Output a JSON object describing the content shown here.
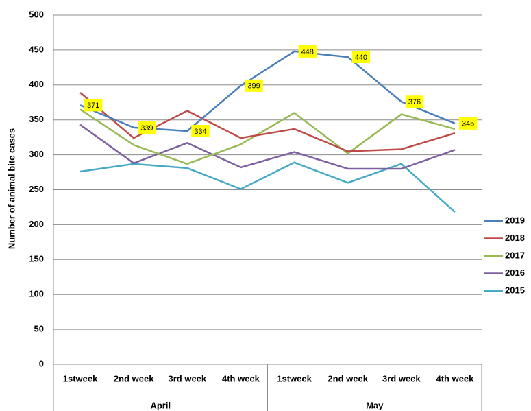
{
  "chart_data": {
    "type": "line",
    "y_axis_label": "Number of animal bite cases",
    "categories": [
      "1stweek",
      "2nd week",
      "3rd week",
      "4th week",
      "1stweek",
      "2nd week",
      "3rd week",
      "4th week"
    ],
    "category_groups": [
      {
        "label": "April",
        "count": 4
      },
      {
        "label": "May",
        "count": 4
      }
    ],
    "series": [
      {
        "name": "2019",
        "color": "#4a7ebb",
        "values": [
          371,
          339,
          334,
          399,
          448,
          440,
          376,
          345
        ],
        "data_labels": true
      },
      {
        "name": "2018",
        "color": "#be4b48",
        "values": [
          389,
          324,
          363,
          324,
          337,
          305,
          308,
          331
        ]
      },
      {
        "name": "2017",
        "color": "#98b954",
        "values": [
          365,
          314,
          287,
          315,
          360,
          302,
          358,
          337
        ]
      },
      {
        "name": "2016",
        "color": "#7d60a0",
        "values": [
          343,
          288,
          317,
          282,
          304,
          280,
          280,
          307
        ]
      },
      {
        "name": "2015",
        "color": "#46aac5",
        "values": [
          276,
          287,
          281,
          251,
          289,
          260,
          287,
          218
        ]
      }
    ],
    "ylim": [
      0,
      500
    ],
    "yticks": [
      0,
      50,
      100,
      150,
      200,
      250,
      300,
      350,
      400,
      450,
      500
    ],
    "grid": true,
    "legend": "right"
  }
}
